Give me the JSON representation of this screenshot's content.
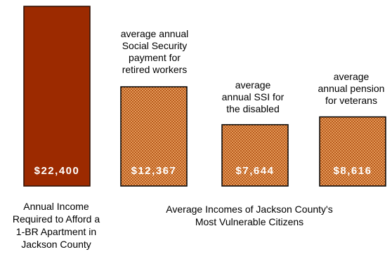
{
  "chart_data": {
    "type": "bar",
    "categories": [
      "Annual Income Required to Afford a 1-BR Apartment in Jackson County",
      "average annual Social Security payment for retired workers",
      "average annual SSI for the disabled",
      "average annual pension for veterans"
    ],
    "values": [
      22400,
      12367,
      7644,
      8616
    ],
    "value_labels": [
      "$22,400",
      "$12,367",
      "$7,644",
      "$8,616"
    ],
    "bar_annotations": [
      "",
      "average annual\nSocial Security\npayment for\nretired workers",
      "average\nannual SSI for\nthe disabled",
      "average\nannual pension\nfor veterans"
    ],
    "ylim": [
      0,
      22400
    ],
    "grid": false,
    "colors": {
      "highlight_fill": "#9c2a00",
      "highlight_edge": "#2a0c00",
      "pattern_base": "#e39a5a",
      "pattern_dot": "#b85a1c",
      "bar_edge": "#000000",
      "value_label_color": "#ffffff"
    }
  },
  "labels": {
    "left_caption": "Annual Income\nRequired to Afford a\n1-BR Apartment in\nJackson County",
    "group_caption": "Average Incomes of Jackson County's\nMost Vulnerable Citizens"
  }
}
